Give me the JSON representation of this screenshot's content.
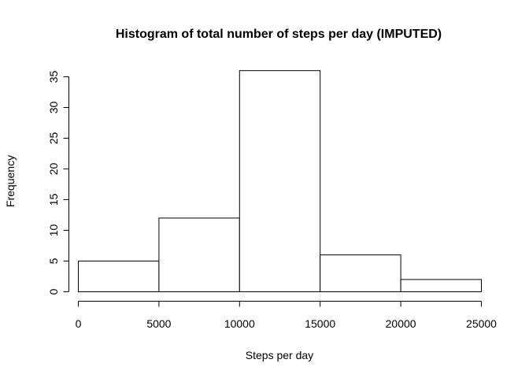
{
  "chart_data": {
    "type": "bar",
    "title": "Histogram of total number of steps per day (IMPUTED)",
    "xlabel": "Steps per day",
    "ylabel": "Frequency",
    "bins": [
      {
        "from": 0,
        "to": 5000,
        "count": 5
      },
      {
        "from": 5000,
        "to": 10000,
        "count": 12
      },
      {
        "from": 10000,
        "to": 15000,
        "count": 36
      },
      {
        "from": 15000,
        "to": 20000,
        "count": 6
      },
      {
        "from": 20000,
        "to": 25000,
        "count": 2
      }
    ],
    "x_ticks": [
      0,
      5000,
      10000,
      15000,
      20000,
      25000
    ],
    "y_ticks": [
      0,
      5,
      10,
      15,
      20,
      25,
      30,
      35
    ],
    "xlim": [
      0,
      25000
    ],
    "ylim": [
      0,
      36
    ],
    "grid": false,
    "bar_fill": "#ffffff",
    "bar_stroke": "#000000"
  }
}
